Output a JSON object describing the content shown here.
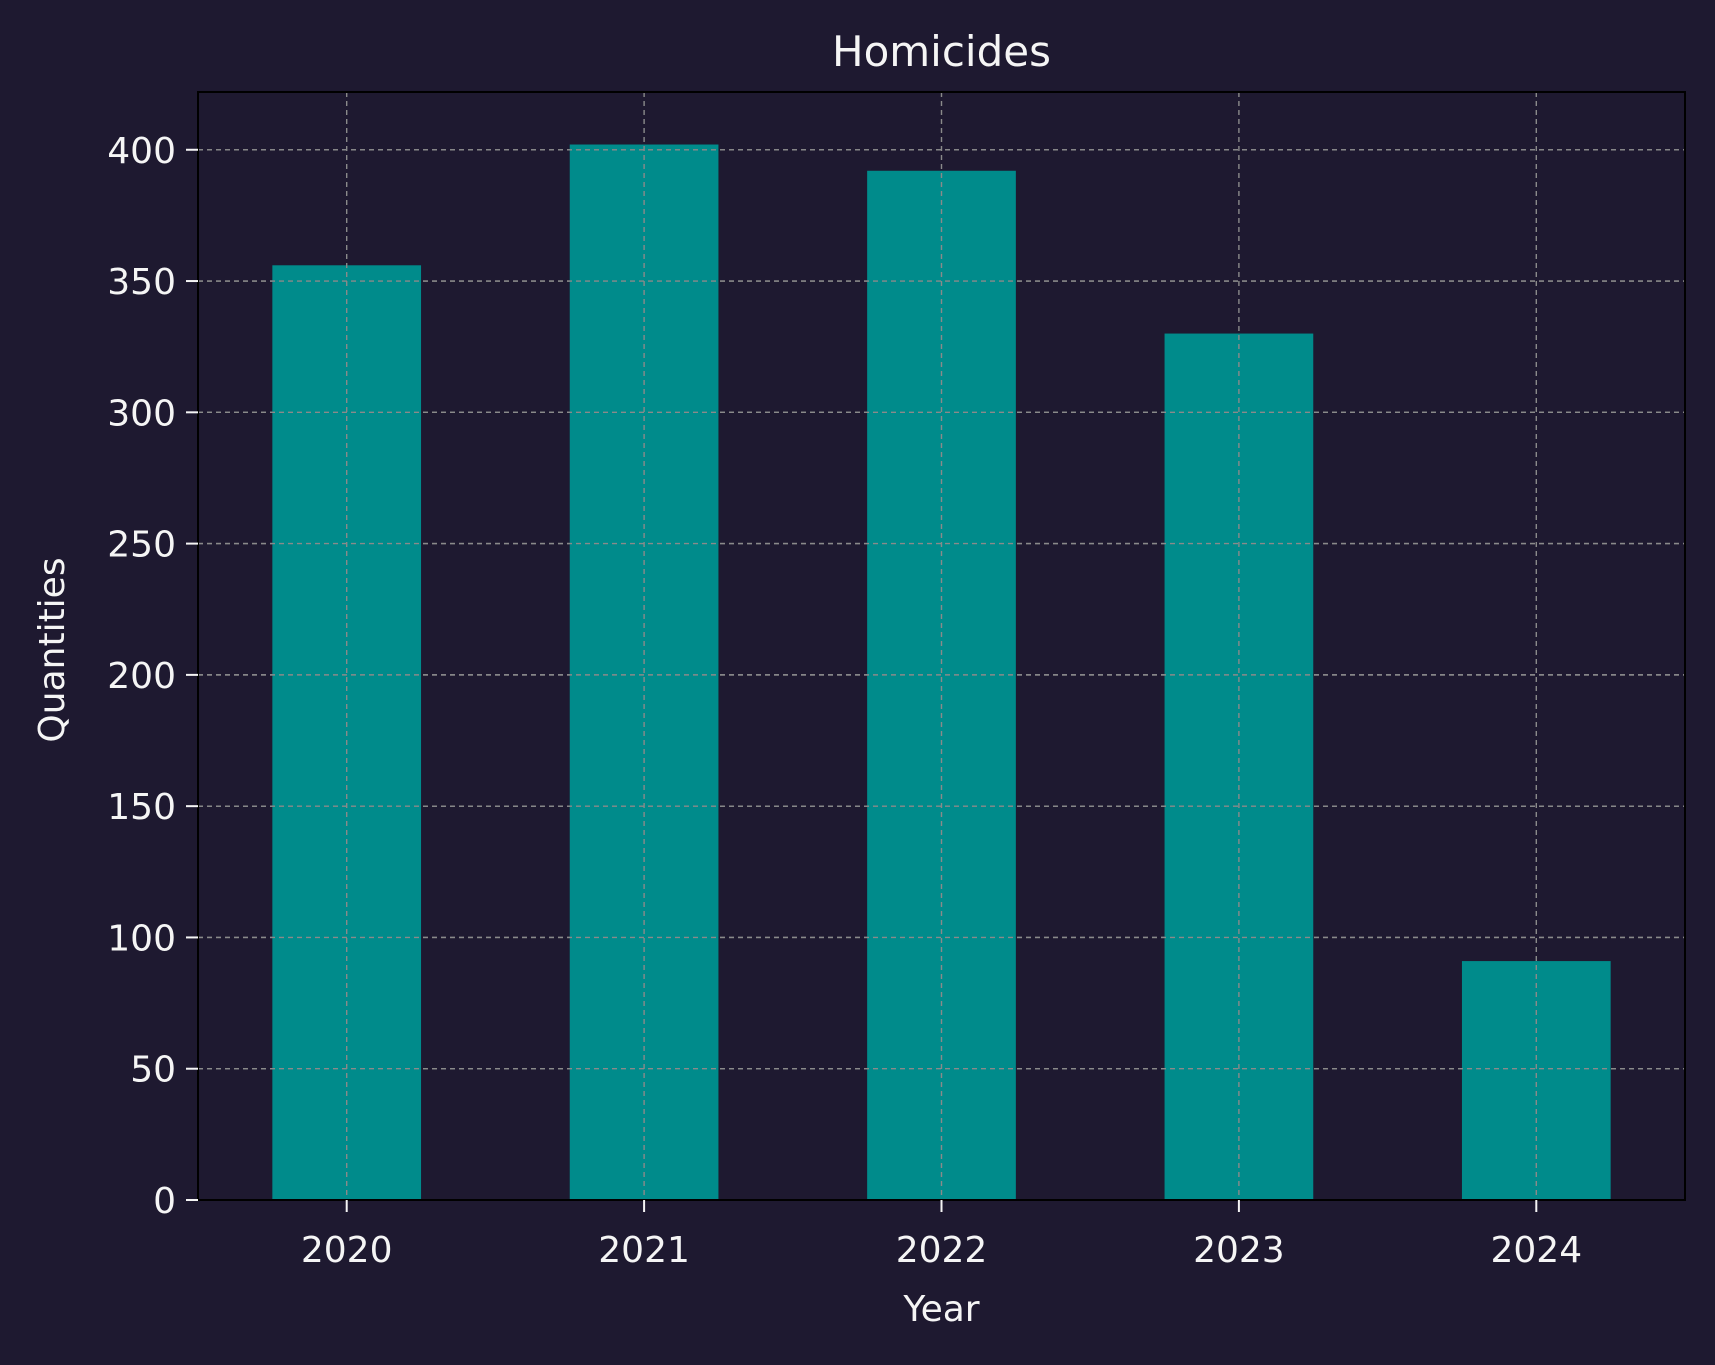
{
  "chart_data": {
    "type": "bar",
    "title": "Homicides",
    "xlabel": "Year",
    "ylabel": "Quantities",
    "categories": [
      "2020",
      "2021",
      "2022",
      "2023",
      "2024"
    ],
    "values": [
      356,
      402,
      392,
      330,
      91
    ],
    "ylim": [
      0,
      422
    ],
    "yticks": [
      0,
      50,
      100,
      150,
      200,
      250,
      300,
      350,
      400
    ],
    "grid": true,
    "legend": false,
    "colors": {
      "background": "#1e1930",
      "bar": "#008b8b",
      "text": "#f5f5f5",
      "grid": "#8a8a8a",
      "axes": "#000000"
    }
  }
}
